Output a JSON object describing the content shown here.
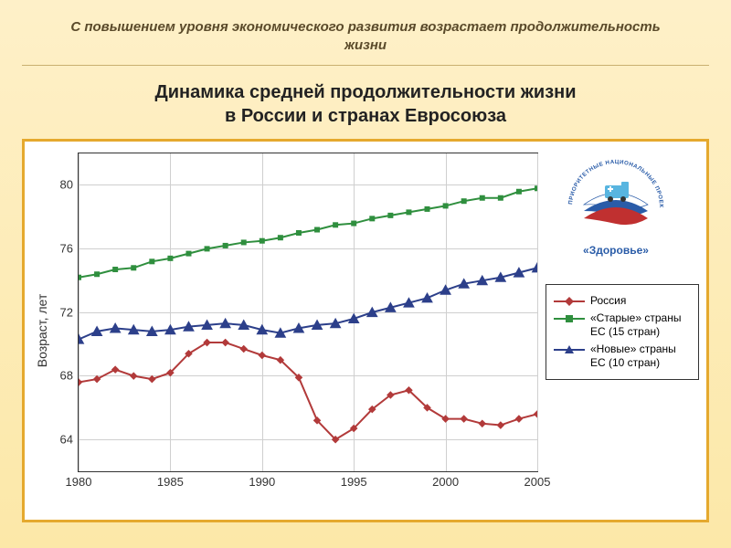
{
  "supertitle": "С повышением уровня экономического развития возрастает продолжительность жизни",
  "title_line1": "Динамика средней продолжительности жизни",
  "title_line2": "в России и странах Евросоюза",
  "chart": {
    "type": "line",
    "background_color": "#ffffff",
    "frame_border_color": "#e5a92e",
    "axis_color": "#333333",
    "grid_color": "#cfcfcf",
    "ylabel": "Возраст, лет",
    "label_fontsize": 14,
    "tick_fontsize": 13,
    "xlim": [
      1980,
      2005
    ],
    "ylim": [
      62,
      82
    ],
    "xticks": [
      1980,
      1985,
      1990,
      1995,
      2000,
      2005
    ],
    "yticks": [
      64,
      68,
      72,
      76,
      80
    ],
    "years": [
      1980,
      1981,
      1982,
      1983,
      1984,
      1985,
      1986,
      1987,
      1988,
      1989,
      1990,
      1991,
      1992,
      1993,
      1994,
      1995,
      1996,
      1997,
      1998,
      1999,
      2000,
      2001,
      2002,
      2003,
      2004,
      2005
    ],
    "series": [
      {
        "id": "russia",
        "label": "Россия",
        "color": "#b23a3a",
        "marker": "diamond",
        "marker_size": 6,
        "line_width": 2,
        "data": [
          67.6,
          67.8,
          68.4,
          68.0,
          67.8,
          68.2,
          69.4,
          70.1,
          70.1,
          69.7,
          69.3,
          69.0,
          67.9,
          65.2,
          64.0,
          64.7,
          65.9,
          66.8,
          67.1,
          66.0,
          65.3,
          65.3,
          65.0,
          64.9,
          65.3,
          65.6
        ]
      },
      {
        "id": "old_eu",
        "label": "«Старые» страны ЕС (15 стран)",
        "color": "#2f8f3e",
        "marker": "square",
        "marker_size": 6,
        "line_width": 2,
        "data": [
          74.2,
          74.4,
          74.7,
          74.8,
          75.2,
          75.4,
          75.7,
          76.0,
          76.2,
          76.4,
          76.5,
          76.7,
          77.0,
          77.2,
          77.5,
          77.6,
          77.9,
          78.1,
          78.3,
          78.5,
          78.7,
          79.0,
          79.2,
          79.2,
          79.6,
          79.8
        ]
      },
      {
        "id": "new_eu",
        "label": "«Новые» страны ЕС (10 стран)",
        "color": "#2c3f8a",
        "marker": "triangle",
        "marker_size": 7,
        "line_width": 2,
        "data": [
          70.3,
          70.8,
          71.0,
          70.9,
          70.8,
          70.9,
          71.1,
          71.2,
          71.3,
          71.2,
          70.9,
          70.7,
          71.0,
          71.2,
          71.3,
          71.6,
          72.0,
          72.3,
          72.6,
          72.9,
          73.4,
          73.8,
          74.0,
          74.2,
          74.5,
          74.8
        ]
      }
    ]
  },
  "legend": {
    "position": "right-middle",
    "border_color": "#333333",
    "fontsize": 12
  },
  "logo": {
    "arc_text": "ПРИОРИТЕТНЫЕ НАЦИОНАЛЬНЫЕ ПРОЕКТЫ",
    "caption": "«Здоровье»",
    "arc_color": "#2a5ca8",
    "flag_white": "#ffffff",
    "flag_blue": "#2a5ca8",
    "flag_red": "#c03030",
    "ambulance_color": "#58b5e0"
  }
}
